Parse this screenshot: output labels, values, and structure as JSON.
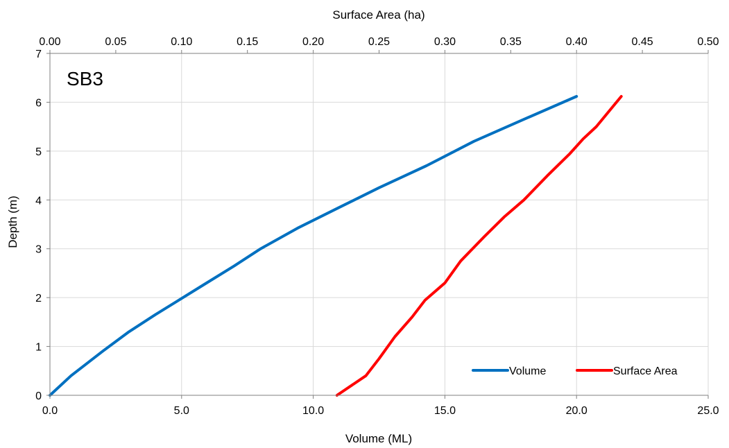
{
  "chart_data": {
    "type": "line",
    "panel_label": "SB3",
    "xlabel_bottom": "Volume (ML)",
    "xlabel_top": "Surface Area (ha)",
    "ylabel": "Depth (m)",
    "xlim_bottom": [
      0,
      25
    ],
    "xlim_top": [
      0,
      0.5
    ],
    "ylim": [
      0,
      7
    ],
    "grid": true,
    "legend_position": "bottom-right",
    "x_ticks_bottom": [
      "0.0",
      "5.0",
      "10.0",
      "15.0",
      "20.0",
      "25.0"
    ],
    "x_ticks_top": [
      "0.00",
      "0.05",
      "0.10",
      "0.15",
      "0.20",
      "0.25",
      "0.30",
      "0.35",
      "0.40",
      "0.45",
      "0.50"
    ],
    "y_ticks": [
      "0",
      "1",
      "2",
      "3",
      "4",
      "5",
      "6",
      "7"
    ],
    "series": [
      {
        "name": "Volume",
        "axis": "bottom",
        "color": "#0070C0",
        "points": [
          [
            0.0,
            0.0
          ],
          [
            0.8,
            0.4
          ],
          [
            2.0,
            0.9
          ],
          [
            3.0,
            1.3
          ],
          [
            4.0,
            1.65
          ],
          [
            4.9,
            1.95
          ],
          [
            5.8,
            2.25
          ],
          [
            7.0,
            2.65
          ],
          [
            8.0,
            3.0
          ],
          [
            9.4,
            3.42
          ],
          [
            11.0,
            3.85
          ],
          [
            12.5,
            4.25
          ],
          [
            14.3,
            4.7
          ],
          [
            16.1,
            5.2
          ],
          [
            18.0,
            5.65
          ],
          [
            20.0,
            6.12
          ]
        ]
      },
      {
        "name": "Surface Area",
        "axis": "top",
        "color": "#FF0000",
        "points": [
          [
            0.218,
            0.0
          ],
          [
            0.24,
            0.4
          ],
          [
            0.25,
            0.75
          ],
          [
            0.262,
            1.2
          ],
          [
            0.275,
            1.6
          ],
          [
            0.285,
            1.95
          ],
          [
            0.3,
            2.3
          ],
          [
            0.312,
            2.75
          ],
          [
            0.33,
            3.25
          ],
          [
            0.345,
            3.65
          ],
          [
            0.36,
            4.0
          ],
          [
            0.378,
            4.5
          ],
          [
            0.395,
            4.95
          ],
          [
            0.405,
            5.25
          ],
          [
            0.415,
            5.5
          ],
          [
            0.434,
            6.12
          ]
        ]
      }
    ]
  }
}
